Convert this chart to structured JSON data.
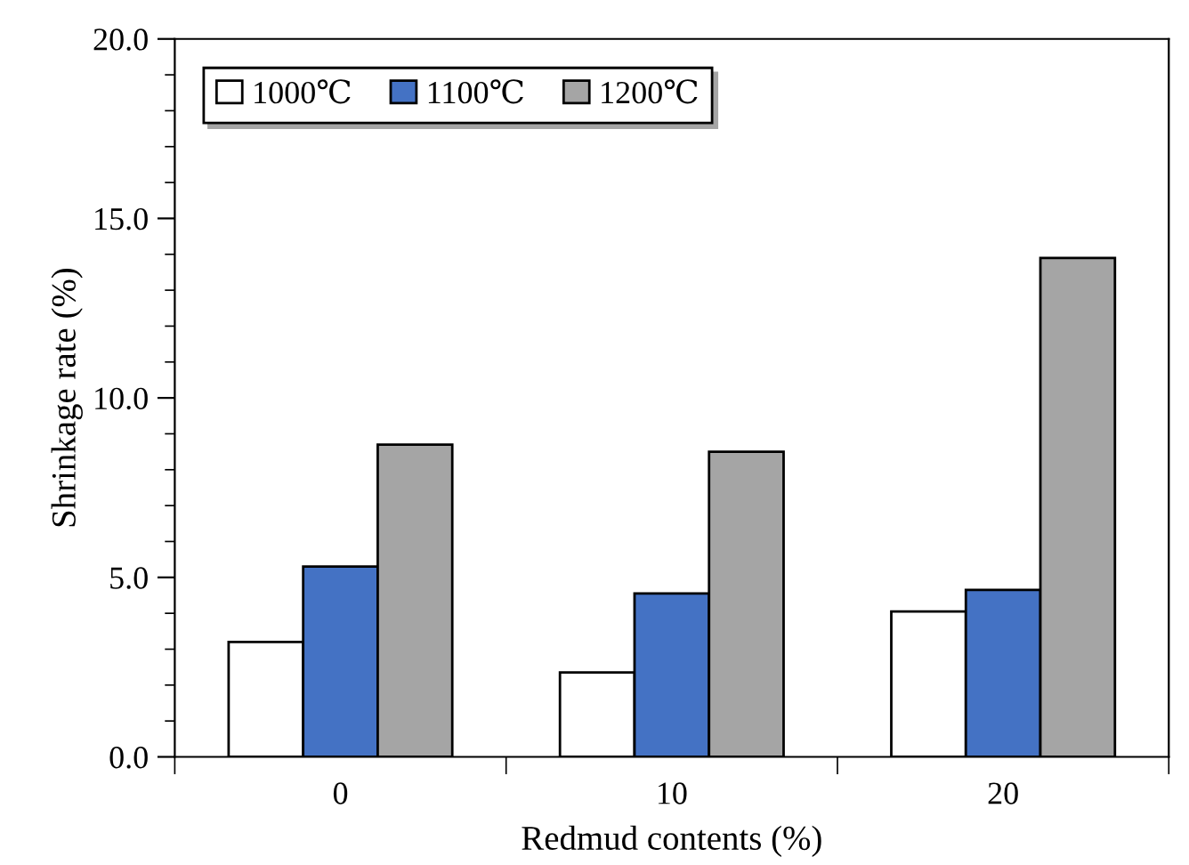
{
  "chart_data": {
    "type": "bar",
    "xlabel": "Redmud contents (%)",
    "ylabel": "Shrinkage rate (%)",
    "categories": [
      "0",
      "10",
      "20"
    ],
    "series": [
      {
        "name": "1000℃",
        "color": "#ffffff",
        "values": [
          3.2,
          2.35,
          4.05
        ]
      },
      {
        "name": "1100℃",
        "color": "#4472c4",
        "values": [
          5.3,
          4.55,
          4.65
        ]
      },
      {
        "name": "1200℃",
        "color": "#a5a5a5",
        "values": [
          8.7,
          8.5,
          13.9
        ]
      }
    ],
    "ylim": [
      0,
      20
    ],
    "yticks": [
      {
        "value": 0,
        "label": "0.0"
      },
      {
        "value": 5,
        "label": "5.0"
      },
      {
        "value": 10,
        "label": "10.0"
      },
      {
        "value": 15,
        "label": "15.0"
      },
      {
        "value": 20,
        "label": "20.0"
      }
    ],
    "grid": false,
    "legend": "top left"
  }
}
